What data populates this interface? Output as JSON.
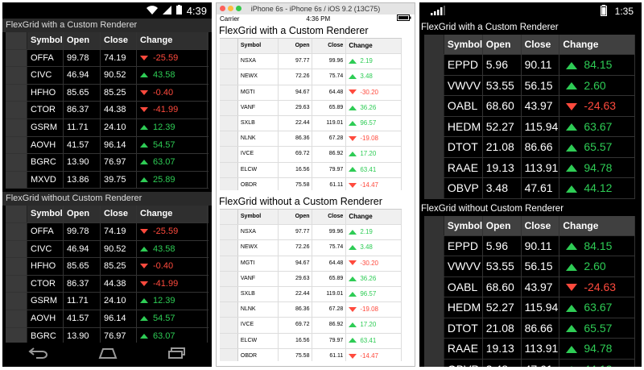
{
  "android": {
    "time": "4:39",
    "title_custom": "FlexGrid with a Custom Renderer",
    "title_plain": "FlexGrid without Custom Renderer",
    "columns": [
      "Symbol",
      "Open",
      "Close",
      "Change"
    ],
    "rows": [
      {
        "symbol": "OFFA",
        "open": "99.78",
        "close": "74.19",
        "change": "-25.59",
        "dir": "down"
      },
      {
        "symbol": "CIVC",
        "open": "46.94",
        "close": "90.52",
        "change": "43.58",
        "dir": "up"
      },
      {
        "symbol": "HFHO",
        "open": "85.65",
        "close": "85.25",
        "change": "-0.40",
        "dir": "down"
      },
      {
        "symbol": "CTOR",
        "open": "86.37",
        "close": "44.38",
        "change": "-41.99",
        "dir": "down"
      },
      {
        "symbol": "GSRM",
        "open": "11.71",
        "close": "24.10",
        "change": "12.39",
        "dir": "up"
      },
      {
        "symbol": "AOVH",
        "open": "41.57",
        "close": "96.14",
        "change": "54.57",
        "dir": "up"
      },
      {
        "symbol": "BGRC",
        "open": "13.90",
        "close": "76.97",
        "change": "63.07",
        "dir": "up"
      },
      {
        "symbol": "MXVD",
        "open": "13.86",
        "close": "39.75",
        "change": "25.89",
        "dir": "up"
      }
    ]
  },
  "ios": {
    "window_title": "iPhone 6s - iPhone 6s / iOS 9.2 (13C75)",
    "carrier": "Carrier",
    "time": "4:36 PM",
    "title_custom": "FlexGrid with a Custom Renderer",
    "title_plain": "FlexGrid without a Custom Renderer",
    "columns": [
      "Symbol",
      "Open",
      "Close",
      "Change"
    ],
    "rows": [
      {
        "symbol": "NSXA",
        "open": "97.77",
        "close": "99.96",
        "change": "2.19",
        "dir": "up"
      },
      {
        "symbol": "NEWX",
        "open": "72.26",
        "close": "75.74",
        "change": "3.48",
        "dir": "up"
      },
      {
        "symbol": "MGTI",
        "open": "94.67",
        "close": "64.48",
        "change": "-30.20",
        "dir": "down"
      },
      {
        "symbol": "VANF",
        "open": "29.63",
        "close": "65.89",
        "change": "36.26",
        "dir": "up"
      },
      {
        "symbol": "SXLB",
        "open": "22.44",
        "close": "119.01",
        "change": "96.57",
        "dir": "up"
      },
      {
        "symbol": "NLNK",
        "open": "86.36",
        "close": "67.28",
        "change": "-19.08",
        "dir": "down"
      },
      {
        "symbol": "IVCE",
        "open": "69.72",
        "close": "86.92",
        "change": "17.20",
        "dir": "up"
      },
      {
        "symbol": "ELCW",
        "open": "16.56",
        "close": "79.97",
        "change": "63.41",
        "dir": "up"
      },
      {
        "symbol": "OBDR",
        "open": "75.58",
        "close": "61.11",
        "change": "-14.47",
        "dir": "down"
      }
    ]
  },
  "win": {
    "time": "1:35",
    "title_custom": "FlexGrid with a Custom Renderer",
    "title_plain": "FlexGrid without Custom Renderer",
    "columns": [
      "Symbol",
      "Open",
      "Close",
      "Change"
    ],
    "rows": [
      {
        "symbol": "EPPD",
        "open": "5.96",
        "close": "90.11",
        "change": "84.15",
        "dir": "up"
      },
      {
        "symbol": "VWVV",
        "open": "53.55",
        "close": "56.15",
        "change": "2.60",
        "dir": "up"
      },
      {
        "symbol": "OABL",
        "open": "68.60",
        "close": "43.97",
        "change": "-24.63",
        "dir": "down"
      },
      {
        "symbol": "HEDM",
        "open": "52.27",
        "close": "115.94",
        "change": "63.67",
        "dir": "up"
      },
      {
        "symbol": "DTOT",
        "open": "21.08",
        "close": "86.66",
        "change": "65.57",
        "dir": "up"
      },
      {
        "symbol": "RAAE",
        "open": "19.13",
        "close": "113.91",
        "change": "94.78",
        "dir": "up"
      },
      {
        "symbol": "OBVP",
        "open": "3.48",
        "close": "47.61",
        "change": "44.12",
        "dir": "up"
      }
    ]
  },
  "colors": {
    "up": "#2ecc55",
    "down": "#ff4a3d"
  }
}
